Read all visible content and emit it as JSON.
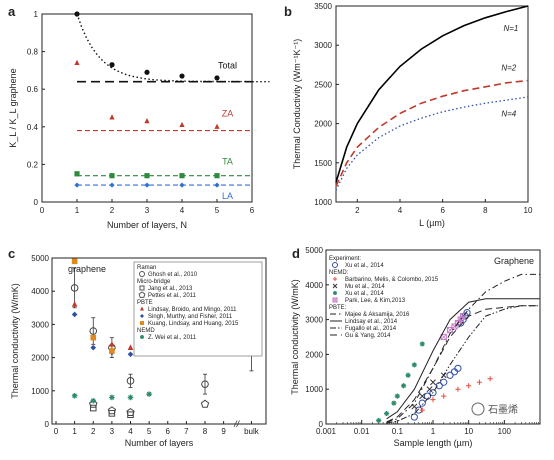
{
  "chart_data": [
    {
      "panel": "a",
      "type": "scatter",
      "xlabel": "Number of layers, N",
      "ylabel": "K_L / K_L graphene",
      "xlim": [
        0,
        6
      ],
      "ylim": [
        0,
        1
      ],
      "xticks": [
        "0",
        "1",
        "2",
        "3",
        "4",
        "5",
        "6"
      ],
      "yticks": [
        "0",
        "0.2",
        "0.4",
        "0.6",
        "0.8",
        "1"
      ],
      "series": [
        {
          "name": "Total",
          "color": "#111111",
          "marker": "circle",
          "x": [
            1,
            2,
            3,
            4,
            5
          ],
          "y": [
            1.0,
            0.73,
            0.69,
            0.67,
            0.66
          ],
          "fit_y": 0.64,
          "fit_style": "dashed",
          "curve_style": "dotted"
        },
        {
          "name": "ZA",
          "color": "#c0392b",
          "marker": "triangle",
          "x": [
            1,
            2,
            3,
            4,
            5
          ],
          "y": [
            0.74,
            0.45,
            0.43,
            0.41,
            0.4
          ],
          "fit_y": 0.38,
          "fit_style": "dashed"
        },
        {
          "name": "TA",
          "color": "#2e8b3e",
          "marker": "square",
          "x": [
            1,
            2,
            3,
            4,
            5
          ],
          "y": [
            0.15,
            0.14,
            0.14,
            0.14,
            0.14
          ],
          "fit_y": 0.14,
          "fit_style": "dashed"
        },
        {
          "name": "LA",
          "color": "#2f6fd6",
          "marker": "diamond",
          "x": [
            1,
            2,
            3,
            4,
            5
          ],
          "y": [
            0.09,
            0.09,
            0.09,
            0.09,
            0.09
          ],
          "fit_y": 0.09,
          "fit_style": "dashed"
        }
      ]
    },
    {
      "panel": "b",
      "type": "line",
      "xlabel": "L (µm)",
      "ylabel": "Thermal Conductivity (Wm⁻¹K⁻¹)",
      "xlim": [
        1,
        10
      ],
      "ylim": [
        1000,
        3500
      ],
      "xticks": [
        "2",
        "4",
        "6",
        "8",
        "10"
      ],
      "yticks": [
        "1000",
        "1500",
        "2000",
        "2500",
        "3000",
        "3500"
      ],
      "series": [
        {
          "name": "N=1",
          "color": "#000000",
          "style": "solid",
          "x": [
            1,
            1.5,
            2,
            3,
            4,
            5,
            6,
            7,
            8,
            9,
            10
          ],
          "y": [
            1250,
            1700,
            2000,
            2430,
            2730,
            2950,
            3120,
            3250,
            3350,
            3430,
            3500
          ]
        },
        {
          "name": "N=2",
          "color": "#c0392b",
          "style": "dashed",
          "x": [
            1,
            1.5,
            2,
            3,
            4,
            5,
            6,
            7,
            8,
            9,
            10
          ],
          "y": [
            1200,
            1500,
            1700,
            1950,
            2130,
            2260,
            2350,
            2420,
            2470,
            2520,
            2550
          ]
        },
        {
          "name": "N=4",
          "color": "#2f4fa8",
          "style": "dotted",
          "x": [
            1,
            1.5,
            2,
            3,
            4,
            5,
            6,
            7,
            8,
            9,
            10
          ],
          "y": [
            1150,
            1430,
            1600,
            1820,
            1970,
            2070,
            2150,
            2210,
            2260,
            2300,
            2340
          ]
        }
      ]
    },
    {
      "panel": "c",
      "type": "scatter",
      "annotation": "graphene",
      "xlabel": "Number of layers",
      "ylabel": "Thermal conductivity (W/mK)",
      "ylim": [
        0,
        5000
      ],
      "xticks": [
        "0",
        "1",
        "2",
        "3",
        "4",
        "5",
        "6",
        "7",
        "8",
        "9",
        "bulk"
      ],
      "yticks": [
        "0",
        "1000",
        "2000",
        "3000",
        "4000",
        "5000"
      ],
      "legend": {
        "groups": [
          {
            "title": "Raman",
            "items": [
              {
                "label": "Ghosh et al., 2010",
                "color": "#555555",
                "marker": "circle-open"
              }
            ]
          },
          {
            "title": "Micro-bridge",
            "items": [
              {
                "label": "Jang et al., 2013",
                "color": "#555555",
                "marker": "square-open"
              },
              {
                "label": "Pettes et al., 2011",
                "color": "#555555",
                "marker": "pentagon-open"
              }
            ]
          },
          {
            "title": "PBTE",
            "items": [
              {
                "label": "Lindsay, Broido, and Mingo, 2011",
                "color": "#c0392b",
                "marker": "triangle"
              },
              {
                "label": "Singh, Murthy, and Fisher, 2011",
                "color": "#2f4fa8",
                "marker": "diamond"
              },
              {
                "label": "Kuang, Lindsay, and Huang, 2015",
                "color": "#e08a1e",
                "marker": "square"
              }
            ]
          },
          {
            "title": "NEMD",
            "items": [
              {
                "label": "Z. Wei et al., 2011",
                "color": "#2e8b6e",
                "marker": "star"
              }
            ]
          }
        ]
      },
      "series": [
        {
          "name": "Ghosh et al., 2010",
          "marker": "circle-open",
          "color": "#444444",
          "x": [
            1,
            2,
            3,
            4,
            8
          ],
          "y": [
            4100,
            2800,
            2300,
            1300,
            1200
          ],
          "err": [
            600,
            400,
            300,
            200,
            300
          ]
        },
        {
          "name": "Jang et al., 2013",
          "marker": "square-open",
          "color": "#444444",
          "x": [
            2,
            3,
            4
          ],
          "y": [
            480,
            320,
            280
          ]
        },
        {
          "name": "Pettes et al., 2011",
          "marker": "pentagon-open",
          "color": "#444444",
          "x": [
            2,
            3,
            4,
            8
          ],
          "y": [
            600,
            400,
            350,
            600
          ]
        },
        {
          "name": "Lindsay, Broido, and Mingo, 2011",
          "marker": "triangle",
          "color": "#c0392b",
          "x": [
            1,
            2,
            3,
            4,
            5
          ],
          "y": [
            3600,
            2600,
            2400,
            2300,
            2300
          ]
        },
        {
          "name": "Singh, Murthy, and Fisher, 2011",
          "marker": "diamond",
          "color": "#2f4fa8",
          "x": [
            1,
            2,
            3,
            4
          ],
          "y": [
            3300,
            2300,
            2150,
            2100
          ]
        },
        {
          "name": "Kuang, Lindsay, and Huang, 2015",
          "marker": "square",
          "color": "#e08a1e",
          "x": [
            1,
            2,
            3
          ],
          "y": [
            4900,
            2600,
            2200
          ]
        },
        {
          "name": "Z. Wei et al., 2011",
          "marker": "star",
          "color": "#2e8b6e",
          "x": [
            1,
            2,
            3,
            4,
            5
          ],
          "y": [
            850,
            700,
            800,
            800,
            900
          ]
        },
        {
          "name": "bulk",
          "marker": "triangle",
          "color": "#c0392b",
          "x": [
            "bulk"
          ],
          "y": [
            2200
          ],
          "err": [
            600
          ]
        }
      ]
    },
    {
      "panel": "d",
      "type": "scatter",
      "xscale": "log",
      "annotation": "Graphene",
      "xlabel": "Sample length (µm)",
      "ylabel": "Thermal conductivity (W/mK)",
      "xlim": [
        0.001,
        1000
      ],
      "ylim": [
        0,
        5000
      ],
      "xticks": [
        "0.001",
        "0.01",
        "0.1",
        "1",
        "10",
        "100"
      ],
      "yticks": [
        "0",
        "1000",
        "2000",
        "3000",
        "4000",
        "5000"
      ],
      "legend": {
        "groups": [
          {
            "title": "Experiment:",
            "items": [
              {
                "label": "Xu et al., 2014",
                "color": "#2f4fa8",
                "marker": "circle-open"
              }
            ]
          },
          {
            "title": "NEMD:",
            "items": [
              {
                "label": "Barbarino, Melis, & Colombo, 2015",
                "color": "#e74c3c",
                "marker": "plus"
              },
              {
                "label": "Mu et al., 2014",
                "color": "#333333",
                "marker": "cross"
              },
              {
                "label": "Xu et al., 2014",
                "color": "#2e8b6e",
                "marker": "star"
              },
              {
                "label": "Park, Lee, & Kim,2013",
                "color": "#c478c4",
                "marker": "square-x"
              }
            ]
          },
          {
            "title": "PBTE:",
            "items": [
              {
                "label": "Majee & Aksamija, 2016",
                "color": "#222222",
                "style": "dashdot"
              },
              {
                "label": "Lindsay et al., 2014",
                "color": "#222222",
                "style": "solid"
              },
              {
                "label": "Fugallo et al., 2014",
                "color": "#222222",
                "style": "dashdotdot"
              },
              {
                "label": "Gu & Yang, 2014",
                "color": "#222222",
                "style": "dashed"
              }
            ]
          }
        ]
      },
      "series": [
        {
          "name": "Xu et al., 2014 (exp)",
          "marker": "circle-open",
          "color": "#2f4fa8",
          "x": [
            0.3,
            0.4,
            0.5,
            0.7,
            1,
            1.5,
            2,
            3,
            4,
            5,
            6,
            7,
            8,
            9
          ],
          "y": [
            200,
            400,
            600,
            800,
            900,
            1100,
            1200,
            1400,
            1500,
            1600,
            2900,
            3000,
            3100,
            3200
          ]
        },
        {
          "name": "Barbarino, Melis, & Colombo, 2015",
          "marker": "plus",
          "color": "#e74c3c",
          "x": [
            0.5,
            1,
            2,
            5,
            10,
            20,
            40
          ],
          "y": [
            400,
            700,
            800,
            1000,
            1100,
            1200,
            1300
          ]
        },
        {
          "name": "Mu et al., 2014",
          "marker": "cross",
          "color": "#333333",
          "x": [
            0.3,
            0.5,
            0.8,
            1,
            2
          ],
          "y": [
            500,
            800,
            1000,
            1200,
            1400
          ]
        },
        {
          "name": "Xu et al., 2014 (NEMD)",
          "marker": "star",
          "color": "#2e8b6e",
          "x": [
            0.03,
            0.05,
            0.08,
            0.1,
            0.15,
            0.2,
            0.3,
            0.5
          ],
          "y": [
            100,
            300,
            600,
            800,
            1100,
            1400,
            1700,
            2300
          ]
        },
        {
          "name": "Park, Lee, & Kim,2013",
          "marker": "square-x",
          "color": "#c478c4",
          "x": [
            2,
            3,
            4,
            5,
            6,
            7
          ],
          "y": [
            2500,
            2700,
            2800,
            2900,
            3000,
            3100
          ]
        },
        {
          "name": "Majee & Aksamija, 2016",
          "style": "dashdot",
          "color": "#222222",
          "x": [
            0.05,
            0.1,
            0.3,
            1,
            3,
            10,
            30,
            100,
            300,
            1000
          ],
          "y": [
            50,
            150,
            600,
            1600,
            2600,
            3300,
            3800,
            4100,
            4300,
            4300
          ]
        },
        {
          "name": "Lindsay et al., 2014",
          "style": "solid",
          "color": "#222222",
          "x": [
            0.05,
            0.1,
            0.3,
            1,
            3,
            10,
            30,
            100,
            300,
            1000
          ],
          "y": [
            150,
            350,
            1000,
            2100,
            3000,
            3500,
            3600,
            3600,
            3600,
            3600
          ]
        },
        {
          "name": "Fugallo et al., 2014",
          "style": "dashdotdot",
          "color": "#222222",
          "x": [
            0.05,
            0.1,
            0.3,
            1,
            3,
            10,
            30,
            100,
            300,
            1000
          ],
          "y": [
            30,
            80,
            300,
            900,
            1700,
            2500,
            3100,
            3300,
            3400,
            3400
          ]
        },
        {
          "name": "Gu & Yang, 2014",
          "style": "dashed",
          "color": "#222222",
          "x": [
            0.05,
            0.1,
            0.3,
            1,
            3,
            10,
            30,
            100,
            300,
            1000
          ],
          "y": [
            60,
            200,
            700,
            1600,
            2500,
            3100,
            3300,
            3350,
            3400,
            3400
          ]
        }
      ]
    }
  ],
  "panels": {
    "a": "a",
    "b": "b",
    "c": "c",
    "d": "d"
  },
  "watermark": "石墨烯"
}
